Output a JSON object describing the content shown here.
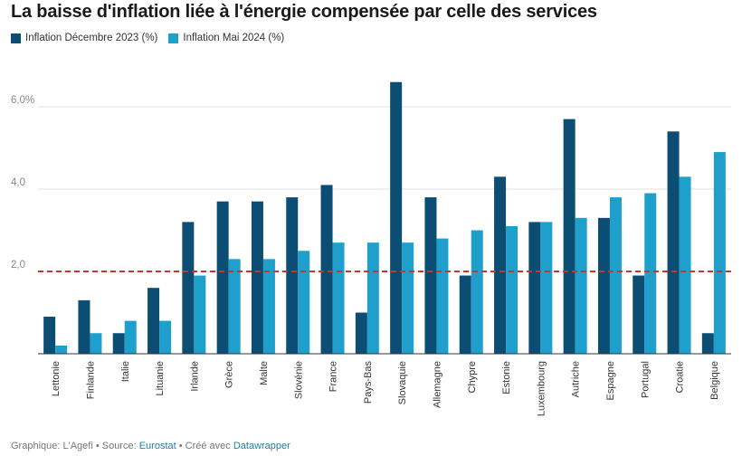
{
  "title": "La baisse d'inflation liée à l'énergie compensée par celle des services",
  "legend": [
    {
      "label": "Inflation Décembre 2023 (%)",
      "color": "#0b4d73"
    },
    {
      "label": "Inflation Mai 2024 (%)",
      "color": "#1fa0cc"
    }
  ],
  "footer": {
    "prefix": "Graphique: L'Agefi • Source: ",
    "source": "Eurostat",
    "middle": " • Créé avec ",
    "tool": "Datawrapper"
  },
  "chart_data": {
    "type": "bar",
    "categories": [
      "Lettonie",
      "Finlande",
      "Italie",
      "Lituanie",
      "Irlande",
      "Grèce",
      "Malte",
      "Slovénie",
      "France",
      "Pays-Bas",
      "Slovaquie",
      "Allemagne",
      "Chypre",
      "Estonie",
      "Luxembourg",
      "Autriche",
      "Espagne",
      "Portugal",
      "Croatie",
      "Belgique"
    ],
    "series": [
      {
        "name": "Inflation Décembre 2023 (%)",
        "color": "#0b4d73",
        "values": [
          0.9,
          1.3,
          0.5,
          1.6,
          3.2,
          3.7,
          3.7,
          3.8,
          4.1,
          1.0,
          6.6,
          3.8,
          1.9,
          4.3,
          3.2,
          5.7,
          3.3,
          1.9,
          5.4,
          0.5
        ]
      },
      {
        "name": "Inflation Mai 2024 (%)",
        "color": "#1fa0cc",
        "values": [
          0.2,
          0.5,
          0.8,
          0.8,
          1.9,
          2.3,
          2.3,
          2.5,
          2.7,
          2.7,
          2.7,
          2.8,
          3.0,
          3.1,
          3.2,
          3.3,
          3.8,
          3.9,
          4.3,
          4.9
        ]
      }
    ],
    "yticks": [
      {
        "value": 2,
        "label": "2,0"
      },
      {
        "value": 4,
        "label": "4,0"
      },
      {
        "value": 6,
        "label": "6,0%"
      }
    ],
    "ylim": [
      0,
      6.9
    ],
    "reference_line": {
      "value": 2.0,
      "color": "#c0392b",
      "style": "dashed"
    },
    "grid": true
  }
}
